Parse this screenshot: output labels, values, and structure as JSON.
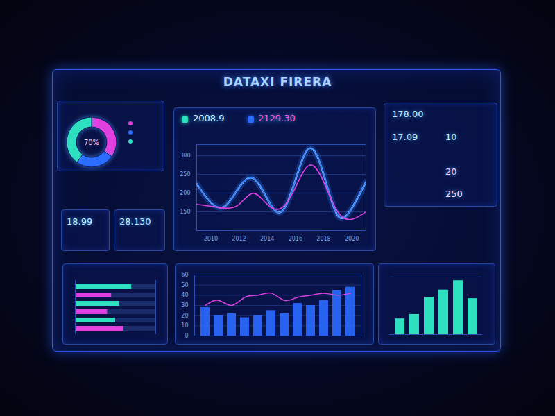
{
  "header": {
    "title": "DATAXI FIRERA"
  },
  "kpis": {
    "top": [
      "2008.9",
      "2129.30"
    ],
    "left": [
      "18.99",
      "28.130"
    ],
    "right": [
      "178.00",
      "17.09",
      "10",
      "20",
      "250"
    ]
  },
  "chart_data": [
    {
      "type": "pie",
      "categories": [
        null,
        null,
        null
      ],
      "values": [
        35,
        25,
        40
      ],
      "colors": [
        "#e040e0",
        "#2a6cff",
        "#2de0c0"
      ],
      "annotations": [
        "70%"
      ]
    },
    {
      "type": "line",
      "x": [
        2009,
        2010,
        2011,
        2012,
        2013,
        2014,
        2015,
        2016,
        2017,
        2018,
        2019,
        2020,
        2021
      ],
      "series": [
        {
          "color": "#2a7bff",
          "values": [
            225,
            175,
            165,
            215,
            240,
            185,
            150,
            235,
            320,
            250,
            140,
            160,
            230
          ]
        },
        {
          "color": "#e040e0",
          "values": [
            170,
            165,
            160,
            170,
            200,
            170,
            160,
            215,
            275,
            230,
            150,
            130,
            150
          ]
        }
      ],
      "xlim": [
        2009,
        2021
      ],
      "xticks": [
        2010,
        2012,
        2014,
        2016,
        2018,
        2020
      ],
      "ylim": [
        100,
        330
      ],
      "yticks": [
        150,
        200,
        250,
        300
      ],
      "grid": true
    },
    {
      "type": "bar",
      "orientation": "horizontal",
      "categories": [
        null,
        null,
        null,
        null,
        null,
        null
      ],
      "values": [
        70,
        45,
        55,
        40,
        50,
        60
      ],
      "colors": [
        "#2de0c0",
        "#e040e0",
        "#2de0c0",
        "#e040e0",
        "#2de0c0",
        "#e040e0"
      ],
      "xlim": [
        0,
        100
      ],
      "tick_labels": false
    },
    {
      "type": "bar",
      "categories": [
        null,
        null,
        null,
        null,
        null,
        null,
        null,
        null,
        null,
        null,
        null,
        null
      ],
      "series": [
        {
          "type": "bar",
          "color": "#2a6cff",
          "values": [
            28,
            20,
            22,
            18,
            20,
            25,
            22,
            32,
            30,
            35,
            45,
            48
          ]
        },
        {
          "type": "line",
          "color": "#e040e0",
          "values": [
            30,
            35,
            30,
            38,
            40,
            42,
            35,
            38,
            40,
            42,
            40,
            42
          ]
        }
      ],
      "ylim": [
        0,
        60
      ],
      "yticks": [
        0,
        10,
        20,
        30,
        40,
        50,
        60
      ],
      "grid": true,
      "tick_labels": "y"
    },
    {
      "type": "bar",
      "categories": [
        null,
        null,
        null,
        null,
        null,
        null
      ],
      "values": [
        22,
        28,
        52,
        62,
        75,
        50
      ],
      "color": "#2de0c0",
      "ylim": [
        0,
        80
      ],
      "tick_labels": false
    }
  ]
}
